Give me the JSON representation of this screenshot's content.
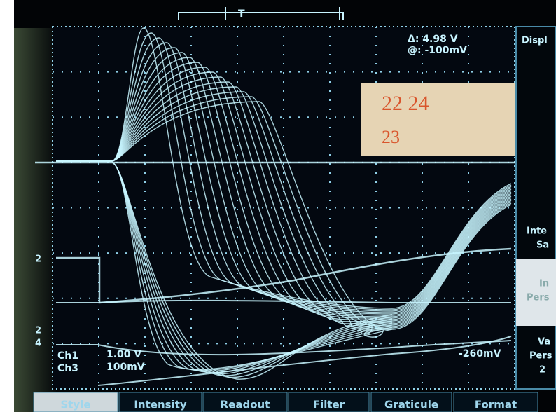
{
  "readout": {
    "delta": "Δ: 4.98 V",
    "at": "@: -100mV"
  },
  "note": {
    "line1": "22  24",
    "line2": "23"
  },
  "trigger": "T",
  "channels": {
    "ch1": "Ch1",
    "ch3": "Ch3",
    "ch1_scale": "1.00 V",
    "ch3_scale": "100mV",
    "level": "-260mV"
  },
  "markers": [
    "2",
    "2",
    "4"
  ],
  "side_menu": [
    "Displ",
    "Inte",
    "Sa",
    "In",
    "Pers",
    "Va",
    "Pers",
    "2"
  ],
  "bottom_menu": [
    "Style",
    "Intensity",
    "Readout",
    "Filter",
    "Graticule",
    "Format"
  ]
}
